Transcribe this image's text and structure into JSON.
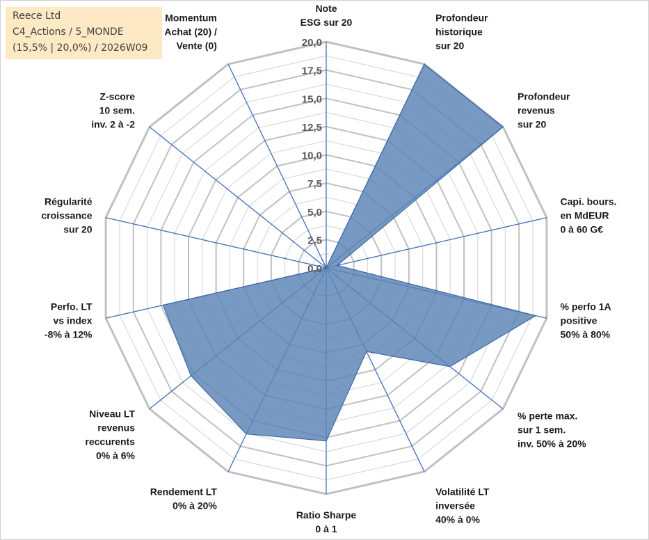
{
  "header": {
    "company": "Reece Ltd",
    "category": "C4_Actions / 5_MONDE",
    "params": "(15,5% | 20,0%) / 2026W09"
  },
  "colors": {
    "fill": "#5a84b5",
    "stroke": "#3a67a8",
    "spoke": "#3f6fb8",
    "ring": "#c0c0c0",
    "ring_inner": "#d9d9d9"
  },
  "chart_data": {
    "type": "radar",
    "rmax": 20,
    "rings_major": [
      0,
      2.5,
      5,
      7.5,
      10,
      12.5,
      15,
      17.5,
      20
    ],
    "tick_labels": [
      "0,0",
      "2,5",
      "5,0",
      "7,5",
      "10,0",
      "12,5",
      "15,0",
      "17,5",
      "20,0"
    ],
    "axes": [
      {
        "label": [
          "Note",
          "ESG sur 20"
        ],
        "value": 0
      },
      {
        "label": [
          "Profondeur",
          "historique",
          "sur 20"
        ],
        "value": 20
      },
      {
        "label": [
          "Profondeur",
          "revenus",
          "sur 20"
        ],
        "value": 20
      },
      {
        "label": [
          "Capi. bours.",
          "en MdEUR",
          "0 à 60 G€"
        ],
        "value": 1.0
      },
      {
        "label": [
          "% perfo 1A",
          "positive",
          "50% à 80%"
        ],
        "value": 19.0
      },
      {
        "label": [
          "% perte max.",
          "sur 1 sem.",
          "inv. 50% à 20%"
        ],
        "value": 14.0
      },
      {
        "label": [
          "Volatilité LT",
          "inversée",
          "40% à 0%"
        ],
        "value": 8.2
      },
      {
        "label": [
          "Ratio Sharpe",
          "0 à 1"
        ],
        "value": 15.3
      },
      {
        "label": [
          "Rendement LT",
          "0% à 20%"
        ],
        "value": 16.3
      },
      {
        "label": [
          "Niveau LT",
          "revenus",
          "reccurents",
          "0% à 6%"
        ],
        "value": 15.3
      },
      {
        "label": [
          "Perfo. LT",
          "vs index",
          "-8% à 12%"
        ],
        "value": 14.8
      },
      {
        "label": [
          "Régularité",
          "croissance",
          "sur 20"
        ],
        "value": 0
      },
      {
        "label": [
          "Z-score",
          "10 sem.",
          "inv. 2 à -2"
        ],
        "value": 0
      },
      {
        "label": [
          "Momentum",
          "Achat (20) /",
          "Vente (0)"
        ],
        "value": 1.0
      }
    ]
  }
}
